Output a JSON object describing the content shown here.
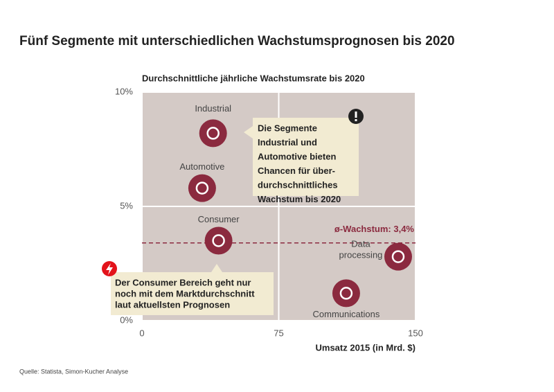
{
  "chart_data": {
    "type": "scatter",
    "title": "Fünf Segmente mit unterschiedlichen Wachstumsprognosen bis 2020",
    "subtitle": "Durchschnittliche jährliche Wachstumsrate bis 2020",
    "x_label": "Umsatz 2015 (in Mrd. $)",
    "xlim": [
      0,
      150
    ],
    "ylim": [
      0,
      10
    ],
    "xticks": [
      0,
      75,
      150
    ],
    "yticks": [
      {
        "value": 0,
        "label": "0%"
      },
      {
        "value": 5,
        "label": "5%"
      },
      {
        "value": 10,
        "label": "10%"
      }
    ],
    "color": "#8b2a3f",
    "points": [
      {
        "name": "Industrial",
        "x": 39,
        "y": 8.2
      },
      {
        "name": "Automotive",
        "x": 33,
        "y": 5.8
      },
      {
        "name": "Consumer",
        "x": 42,
        "y": 3.5
      },
      {
        "name": "Data processing",
        "x": 140.5,
        "y": 2.8
      },
      {
        "name": "Communications",
        "x": 112,
        "y": 1.2
      }
    ],
    "average": {
      "value": 3.4,
      "label": "ø-Wachstum: 3,4%"
    },
    "annotations": [
      {
        "lines": [
          "Die Segmente",
          "Industrial und",
          "Automotive bieten",
          "Chancen für über-",
          "durchschnittliches",
          "Wachstum bis 2020"
        ]
      },
      {
        "lines": [
          "Der Consumer Bereich geht nur",
          "noch mit dem Marktdurchschnitt",
          "laut aktuellsten Prognosen"
        ]
      }
    ],
    "source": "Quelle: Statista, Simon-Kucher Analyse"
  }
}
